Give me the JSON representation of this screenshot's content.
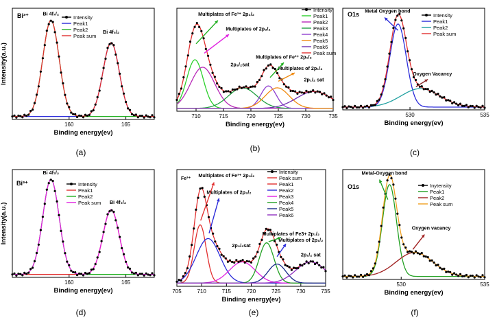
{
  "chart_data": [
    {
      "id": "a",
      "type": "line",
      "panel_label": "(a)",
      "corner_label": "Bi³⁺",
      "xlabel": "Binding energy(ev)",
      "ylabel": "Intensity(a.u.)",
      "xlim": [
        155,
        167.5
      ],
      "ylim": [
        0,
        1.1
      ],
      "xticks": [
        160,
        165
      ],
      "legend": [
        "Intensity",
        "Peak1",
        "Peak2",
        "Peak sum"
      ],
      "legend_position": "top-center",
      "annotations": [
        {
          "text": "Bi 4f₇/₂",
          "x": 158.4,
          "y": 1.03
        },
        {
          "text": "Bi 4f₅/₂",
          "x": 163.7,
          "y": 0.85
        }
      ],
      "series": [
        {
          "name": "Intensity",
          "color": "#000000",
          "marker": true,
          "peaks": []
        },
        {
          "name": "Peak1",
          "color": "#2b2bd9",
          "peaks": [
            [
              163.7,
              0.73,
              0.72
            ]
          ]
        },
        {
          "name": "Peak2",
          "color": "#22b022",
          "peaks": [
            [
              158.4,
              0.95,
              0.72
            ]
          ]
        },
        {
          "name": "Peak sum",
          "color": "#e23030",
          "peaks": [
            [
              158.4,
              0.95,
              0.72
            ],
            [
              163.7,
              0.73,
              0.72
            ]
          ]
        }
      ],
      "baseline": 0.03
    },
    {
      "id": "b",
      "type": "line",
      "panel_label": "(b)",
      "xlabel": "Binding energy(ev)",
      "ylabel": "",
      "xlim": [
        706.5,
        735
      ],
      "ylim": [
        0,
        1.1
      ],
      "xticks": [
        710,
        715,
        720,
        725,
        730,
        735
      ],
      "legend": [
        "Intensity",
        "Peak1",
        "Peak2",
        "Peak3",
        "Peak4",
        "Peak5",
        "Peak6",
        "Peak sum"
      ],
      "legend_position": "top-right",
      "annotations": [
        {
          "text": "Multiplates of Fe³⁺ 2p₃/₂",
          "x": 715.5,
          "y": 1.02
        },
        {
          "text": "Multiplates of 2p₃/₂",
          "x": 719.5,
          "y": 0.86
        },
        {
          "text": "2p₃/₂sat",
          "x": 718.0,
          "y": 0.48
        },
        {
          "text": "Multiplates of  Fe³⁺ 2p₁/₂",
          "x": 726.0,
          "y": 0.56
        },
        {
          "text": "Multiplates of 2p₁/₂",
          "x": 729.0,
          "y": 0.44
        },
        {
          "text": "2p₁/₂ sat",
          "x": 731.5,
          "y": 0.32
        }
      ],
      "series": [
        {
          "name": "Intensity",
          "color": "#000000",
          "marker": true,
          "peaks": []
        },
        {
          "name": "Peak1",
          "color": "#2bd02b",
          "peaks": [
            [
              709.8,
              0.52,
              1.5
            ]
          ]
        },
        {
          "name": "Peak2",
          "color": "#b828b8",
          "peaks": [
            [
              711.2,
              0.44,
              2.2
            ]
          ]
        },
        {
          "name": "Peak3",
          "color": "#20a040",
          "peaks": [
            [
              718.5,
              0.22,
              2.6
            ]
          ]
        },
        {
          "name": "Peak4",
          "color": "#9040d0",
          "peaks": [
            [
              723.2,
              0.24,
              1.4
            ]
          ]
        },
        {
          "name": "Peak5",
          "color": "#f08a10",
          "peaks": [
            [
              724.8,
              0.22,
              2.2
            ]
          ]
        },
        {
          "name": "Peak6",
          "color": "#7030b0",
          "peaks": [
            [
              731.5,
              0.18,
              3.2
            ]
          ]
        },
        {
          "name": "Peak sum",
          "color": "#e23030",
          "peaks": [
            [
              709.8,
              0.52,
              1.5
            ],
            [
              711.2,
              0.44,
              2.2
            ],
            [
              718.5,
              0.22,
              2.6
            ],
            [
              723.2,
              0.24,
              1.4
            ],
            [
              724.8,
              0.22,
              2.2
            ],
            [
              731.5,
              0.18,
              3.2
            ]
          ]
        }
      ],
      "baseline": 0.03
    },
    {
      "id": "c",
      "type": "line",
      "panel_label": "(c)",
      "corner_label": "O1s",
      "xlabel": "Binding energy(ev)",
      "ylabel": "",
      "xlim": [
        525.5,
        535
      ],
      "ylim": [
        0,
        1.1
      ],
      "xticks": [
        530,
        535
      ],
      "legend": [
        "Intensity",
        "Peak1",
        "Peak2",
        "Peak sum"
      ],
      "legend_position": "top-right",
      "annotations": [
        {
          "text": "Metal Oxygen bond",
          "x": 528.5,
          "y": 1.05
        },
        {
          "text": "Oxygen Vacancy",
          "x": 531.5,
          "y": 0.37
        }
      ],
      "series": [
        {
          "name": "Intensity",
          "color": "#000000",
          "marker": true,
          "peaks": []
        },
        {
          "name": "Peak1",
          "color": "#2b2bd9",
          "peaks": [
            [
              529.2,
              0.9,
              0.55
            ]
          ]
        },
        {
          "name": "Peak2",
          "color": "#20a0a0",
          "peaks": [
            [
              530.7,
              0.2,
              1.3
            ]
          ]
        },
        {
          "name": "Peak sum",
          "color": "#e23030",
          "peaks": [
            [
              529.2,
              0.9,
              0.55
            ],
            [
              530.7,
              0.2,
              1.3
            ]
          ]
        }
      ],
      "baseline": 0.03
    },
    {
      "id": "d",
      "type": "line",
      "panel_label": "(d)",
      "corner_label": "Bi³⁺",
      "xlabel": "Binding energy(ev)",
      "ylabel": "Intensity(a.u.)",
      "xlim": [
        155,
        167.5
      ],
      "ylim": [
        0,
        1.1
      ],
      "xticks": [
        160,
        165
      ],
      "legend": [
        "Intensity",
        "Peak1",
        "Peak2",
        "Peak sum"
      ],
      "legend_position": "top-center",
      "annotations": [
        {
          "text": "Bi 4f₇/₂",
          "x": 158.4,
          "y": 1.05
        },
        {
          "text": "Bi 4f₅/₂",
          "x": 164.3,
          "y": 0.75
        }
      ],
      "series": [
        {
          "name": "Intensity",
          "color": "#000000",
          "marker": true,
          "peaks": []
        },
        {
          "name": "Peak1",
          "color": "#e23030",
          "peaks": [
            [
              163.7,
              0.66,
              0.72
            ]
          ]
        },
        {
          "name": "Peak2",
          "color": "#22b022",
          "peaks": [
            [
              158.4,
              0.97,
              0.72
            ]
          ]
        },
        {
          "name": "Peak sum",
          "color": "#e020e0",
          "peaks": [
            [
              158.4,
              0.97,
              0.72
            ],
            [
              163.7,
              0.66,
              0.72
            ]
          ]
        }
      ],
      "baseline": 0.03
    },
    {
      "id": "e",
      "type": "line",
      "panel_label": "(e)",
      "corner_label": "Fe³⁺",
      "xlabel": "Binding energy(ev)",
      "ylabel": "",
      "xlim": [
        705,
        735
      ],
      "ylim": [
        0,
        1.1
      ],
      "xticks": [
        705,
        710,
        715,
        720,
        725,
        730,
        735
      ],
      "legend": [
        "Intensity",
        "Peak sum",
        "Peak1",
        "Peak2",
        "Peak3",
        "Peak4",
        "Peak5",
        "Peak6"
      ],
      "legend_position": "top-right",
      "annotations": [
        {
          "text": "Multiplates of Fe³⁺ 2p₃/₂",
          "x": 715.0,
          "y": 1.03
        },
        {
          "text": "Multiplates of 2p₃/₂",
          "x": 715.5,
          "y": 0.87
        },
        {
          "text": "2p₃/₂sat",
          "x": 718.0,
          "y": 0.37
        },
        {
          "text": "Multiplates of Fe3+ 2p₁/₂",
          "x": 728.0,
          "y": 0.48
        },
        {
          "text": "Multiplates of 2p₁/₂",
          "x": 730.0,
          "y": 0.42
        },
        {
          "text": "2p₁/₂ sat",
          "x": 732.0,
          "y": 0.28
        }
      ],
      "series": [
        {
          "name": "Intensity",
          "color": "#000000",
          "marker": true,
          "peaks": []
        },
        {
          "name": "Peak sum",
          "color": "#e23030",
          "peaks": [
            [
              709.7,
              0.55,
              1.2
            ],
            [
              711.3,
              0.42,
              2.4
            ],
            [
              718.2,
              0.2,
              2.6
            ],
            [
              723.1,
              0.38,
              1.5
            ],
            [
              725.2,
              0.18,
              1.8
            ],
            [
              732.0,
              0.2,
              3.0
            ]
          ]
        },
        {
          "name": "Peak1",
          "color": "#e23030",
          "peaks": [
            [
              709.7,
              0.55,
              1.2
            ]
          ]
        },
        {
          "name": "Peak2",
          "color": "#2b2bd9",
          "peaks": [
            [
              711.3,
              0.42,
              2.4
            ]
          ]
        },
        {
          "name": "Peak3",
          "color": "#e020e0",
          "peaks": [
            [
              718.2,
              0.2,
              2.6
            ]
          ]
        },
        {
          "name": "Peak4",
          "color": "#22a022",
          "peaks": [
            [
              723.1,
              0.38,
              1.5
            ]
          ]
        },
        {
          "name": "Peak5",
          "color": "#1a2a8a",
          "peaks": [
            [
              725.2,
              0.18,
              1.8
            ]
          ]
        },
        {
          "name": "Peak6",
          "color": "#9030c0",
          "peaks": [
            [
              732.0,
              0.2,
              3.0
            ]
          ]
        }
      ],
      "baseline": 0.03
    },
    {
      "id": "f",
      "type": "line",
      "panel_label": "(f)",
      "corner_label": "O1s",
      "xlabel": "Binding energy(ev)",
      "ylabel": "",
      "xlim": [
        526.5,
        535
      ],
      "ylim": [
        0,
        1.1
      ],
      "xticks": [
        530,
        535
      ],
      "legend": [
        "Inytensity",
        "Peak1",
        "Peak2",
        "Peak sum"
      ],
      "legend_position": "top-right",
      "annotations": [
        {
          "text": "Metal-Oxygen bond",
          "x": 529.0,
          "y": 1.05
        },
        {
          "text": "Oxygen vacancy",
          "x": 531.8,
          "y": 0.5
        }
      ],
      "series": [
        {
          "name": "Inytensity",
          "color": "#000000",
          "marker": true,
          "peaks": []
        },
        {
          "name": "Peak1",
          "color": "#22a022",
          "peaks": [
            [
              529.3,
              0.92,
              0.42
            ]
          ]
        },
        {
          "name": "Peak2",
          "color": "#a02020",
          "peaks": [
            [
              530.8,
              0.24,
              1.1
            ]
          ]
        },
        {
          "name": "Peak sum",
          "color": "#f0a020",
          "peaks": [
            [
              529.3,
              0.92,
              0.42
            ],
            [
              530.8,
              0.24,
              1.1
            ]
          ]
        }
      ],
      "baseline": 0.03
    }
  ]
}
